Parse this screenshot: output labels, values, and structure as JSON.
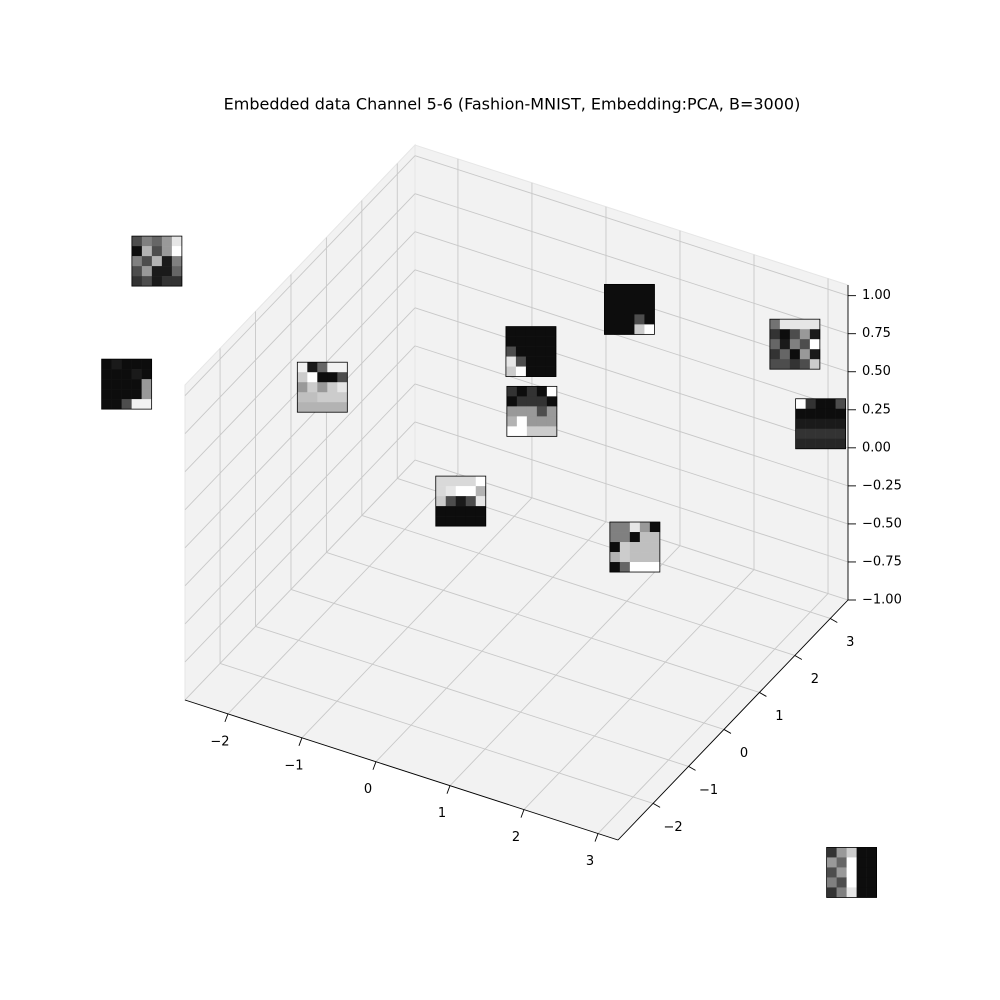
{
  "chart_data": {
    "type": "scatter3d",
    "title": "Embedded data Channel 5-6 (Fashion-MNIST, Embedding:PCA, B=3000)",
    "xlim": [
      -2.58,
      3.27
    ],
    "ylim": [
      -2.99,
      3.5
    ],
    "zlim": [
      -1.0,
      1.07
    ],
    "xticks": [
      {
        "value": -2,
        "label": "−2"
      },
      {
        "value": -1,
        "label": "−1"
      },
      0,
      1,
      2,
      3
    ],
    "yticks": [
      {
        "value": -2,
        "label": "−2"
      },
      {
        "value": -1,
        "label": "−1"
      },
      0,
      1,
      2,
      3
    ],
    "zticks": [
      {
        "value": -1,
        "label": "−1.00"
      },
      {
        "value": -0.75,
        "label": "−0.75"
      },
      {
        "value": -0.5,
        "label": "−0.50"
      },
      {
        "value": -0.25,
        "label": "−0.25"
      },
      {
        "value": 0,
        "label": "0.00"
      },
      {
        "value": 0.25,
        "label": "0.25"
      },
      {
        "value": 0.5,
        "label": "0.50"
      },
      {
        "value": 0.75,
        "label": "0.75"
      },
      {
        "value": 1,
        "label": "1.00"
      }
    ],
    "grid": true,
    "x": [
      -4.2,
      -4.8,
      -2.3,
      -0.2,
      0.7,
      2.6,
      0.1,
      2.9,
      -1.1,
      1.3,
      6.0
    ],
    "y": [
      -0.4,
      0.0,
      0.3,
      1.8,
      2.7,
      3.4,
      1.2,
      3.5,
      1.7,
      1.6,
      -2.1
    ],
    "z": [
      1.0,
      0.0,
      0.3,
      0.5,
      0.7,
      0.6,
      0.3,
      0.1,
      -0.6,
      -0.5,
      -1.0
    ],
    "images": [
      [
        [
          0.3,
          0.5,
          0.4,
          0.6,
          0.9
        ],
        [
          0.05,
          0.7,
          0.3,
          0.6,
          1
        ],
        [
          0.5,
          0.3,
          0.7,
          0.1,
          0.5
        ],
        [
          0.3,
          0.6,
          0.1,
          0.1,
          0.4
        ],
        [
          0.2,
          0.3,
          0.1,
          0.2,
          0.2
        ]
      ],
      [
        [
          0.05,
          0.1,
          0.05,
          0.05,
          0.05
        ],
        [
          0.05,
          0.05,
          0.05,
          0.1,
          0.05
        ],
        [
          0.05,
          0.05,
          0.05,
          0.05,
          0.6
        ],
        [
          0.05,
          0.05,
          0.05,
          0.05,
          0.6
        ],
        [
          0.05,
          0.05,
          0.3,
          0.95,
          0.95
        ]
      ],
      [
        [
          0.95,
          0.1,
          0.4,
          0.95,
          0.95
        ],
        [
          0.8,
          1,
          0.05,
          0.05,
          0.3
        ],
        [
          0.6,
          0.8,
          0.6,
          0.8,
          0.9
        ],
        [
          0.75,
          0.75,
          0.8,
          0.8,
          0.8
        ],
        [
          0.7,
          0.7,
          0.7,
          0.7,
          0.7
        ]
      ],
      [
        [
          0.05,
          0.05,
          0.05,
          0.05,
          0.05
        ],
        [
          0.05,
          0.05,
          0.05,
          0.05,
          0.05
        ],
        [
          0.3,
          0.05,
          0.05,
          0.05,
          0.05
        ],
        [
          0.9,
          0.3,
          0.05,
          0.05,
          0.05
        ],
        [
          0.8,
          1,
          0.05,
          0.05,
          0.05
        ]
      ],
      [
        [
          0.05,
          0.05,
          0.05,
          0.05,
          0.05
        ],
        [
          0.05,
          0.05,
          0.05,
          0.05,
          0.05
        ],
        [
          0.05,
          0.05,
          0.05,
          0.05,
          0.05
        ],
        [
          0.05,
          0.05,
          0.05,
          0.3,
          0.05
        ],
        [
          0.05,
          0.05,
          0.05,
          0.8,
          1
        ]
      ],
      [
        [
          0.45,
          0.9,
          0.9,
          0.9,
          0.9
        ],
        [
          0.2,
          0.05,
          0.3,
          0.6,
          0.1
        ],
        [
          0.4,
          0.1,
          0.5,
          0.3,
          1
        ],
        [
          0.2,
          0.4,
          0.05,
          0.6,
          0.1
        ],
        [
          0.3,
          0.3,
          0.2,
          0.3,
          0.8
        ]
      ],
      [
        [
          0.2,
          0.05,
          0.2,
          0.05,
          1
        ],
        [
          0.05,
          0.2,
          0.2,
          0.2,
          0.05
        ],
        [
          0.6,
          0.6,
          0.6,
          0.3,
          0.6
        ],
        [
          0.7,
          1,
          0.6,
          0.6,
          0.6
        ],
        [
          1,
          1,
          0.8,
          0.8,
          0.8
        ]
      ],
      [
        [
          1,
          0.2,
          0.05,
          0.05,
          0.3
        ],
        [
          0.05,
          0.05,
          0.05,
          0.05,
          0.05
        ],
        [
          0.1,
          0.1,
          0.1,
          0.1,
          0.1
        ],
        [
          0.2,
          0.2,
          0.2,
          0.2,
          0.2
        ],
        [
          0.15,
          0.15,
          0.15,
          0.15,
          0.15
        ]
      ],
      [
        [
          0.85,
          0.85,
          0.85,
          0.85,
          1
        ],
        [
          0.85,
          0.9,
          1,
          1,
          0.7
        ],
        [
          0.8,
          0.3,
          0.1,
          0.3,
          0.9
        ],
        [
          0.05,
          0.05,
          0.05,
          0.05,
          0.05
        ],
        [
          0.05,
          0.05,
          0.05,
          0.05,
          0.05
        ]
      ],
      [
        [
          0.5,
          0.5,
          0.9,
          0.6,
          0.05
        ],
        [
          0.5,
          0.5,
          0.05,
          0.75,
          0.75
        ],
        [
          0.05,
          0.8,
          0.75,
          0.75,
          0.75
        ],
        [
          0.7,
          0.8,
          0.75,
          0.75,
          0.75
        ],
        [
          0.05,
          0.4,
          1,
          1,
          1
        ]
      ],
      [
        [
          0.2,
          0.6,
          0.8,
          0.05,
          0.05
        ],
        [
          0.6,
          0.4,
          1,
          0.05,
          0.05
        ],
        [
          0.3,
          0.6,
          1,
          0.05,
          0.05
        ],
        [
          0.5,
          0.3,
          1,
          0.05,
          0.05
        ],
        [
          0.2,
          0.5,
          0.9,
          0.05,
          0.05
        ]
      ]
    ]
  }
}
